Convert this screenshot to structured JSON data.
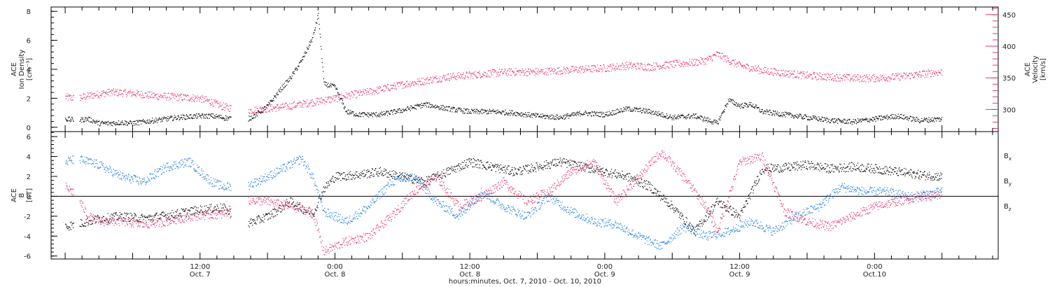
{
  "chart_data": [
    {
      "type": "scatter",
      "panel": "top",
      "y_title_lines": [
        "ACE",
        "Ion Density",
        "[cm⁻³]"
      ],
      "y2_title_lines": [
        "ACE",
        "Velocity",
        "[km/s]"
      ],
      "ylim": [
        -0.3,
        8.3
      ],
      "y2lim": [
        265,
        462
      ],
      "yticks": [
        0,
        2,
        4,
        6,
        8
      ],
      "y2ticks": [
        300,
        350,
        400,
        450
      ],
      "grid": false,
      "colors": {
        "density": "#000000",
        "velocity": "#e8336b"
      },
      "series": [
        {
          "axis": "left",
          "key": "density",
          "points": [
            [
              -12,
              0.6
            ],
            [
              -10,
              0.5
            ],
            [
              -8,
              0.6
            ],
            [
              -6,
              0.3
            ],
            [
              -4,
              0.3
            ],
            [
              -2,
              0.35
            ],
            [
              0,
              0.3
            ],
            [
              2,
              0.4
            ],
            [
              4,
              0.5
            ],
            [
              6,
              0.6
            ],
            [
              8,
              0.7
            ],
            [
              10,
              0.75
            ],
            [
              12,
              0.8
            ],
            [
              14,
              0.8
            ],
            [
              16,
              0.7
            ],
            [
              20,
              0.5
            ],
            [
              22,
              0.9
            ],
            [
              24,
              1.5
            ],
            [
              26,
              2.5
            ],
            [
              28,
              3.4
            ],
            [
              30,
              4.6
            ],
            [
              32,
              6.2
            ],
            [
              33,
              7.8
            ],
            [
              34,
              3.0
            ],
            [
              36,
              2.8
            ],
            [
              38,
              1.1
            ],
            [
              40,
              0.9
            ],
            [
              44,
              0.9
            ],
            [
              48,
              1.2
            ],
            [
              52,
              1.6
            ],
            [
              56,
              1.3
            ],
            [
              60,
              1.1
            ],
            [
              64,
              1.1
            ],
            [
              68,
              1.0
            ],
            [
              72,
              0.8
            ],
            [
              76,
              0.7
            ],
            [
              80,
              1.0
            ],
            [
              84,
              0.9
            ],
            [
              88,
              1.3
            ],
            [
              92,
              1.1
            ],
            [
              96,
              0.7
            ],
            [
              100,
              0.8
            ],
            [
              104,
              0.3
            ],
            [
              106,
              1.9
            ],
            [
              108,
              1.5
            ],
            [
              110,
              1.6
            ],
            [
              112,
              1.1
            ],
            [
              116,
              0.9
            ],
            [
              120,
              0.7
            ],
            [
              124,
              0.5
            ],
            [
              128,
              0.4
            ],
            [
              132,
              0.6
            ],
            [
              136,
              0.8
            ],
            [
              140,
              0.5
            ],
            [
              144,
              0.6
            ]
          ]
        },
        {
          "axis": "right",
          "key": "velocity",
          "points": [
            [
              -12,
              320
            ],
            [
              -10,
              318
            ],
            [
              -8,
              322
            ],
            [
              -4,
              328
            ],
            [
              0,
              326
            ],
            [
              4,
              322
            ],
            [
              8,
              320
            ],
            [
              12,
              318
            ],
            [
              14,
              312
            ],
            [
              16,
              305
            ],
            [
              20,
              298
            ],
            [
              24,
              302
            ],
            [
              28,
              306
            ],
            [
              32,
              312
            ],
            [
              36,
              318
            ],
            [
              38,
              322
            ],
            [
              40,
              325
            ],
            [
              44,
              332
            ],
            [
              48,
              340
            ],
            [
              52,
              346
            ],
            [
              56,
              352
            ],
            [
              60,
              355
            ],
            [
              64,
              358
            ],
            [
              68,
              360
            ],
            [
              72,
              360
            ],
            [
              76,
              362
            ],
            [
              80,
              364
            ],
            [
              84,
              366
            ],
            [
              88,
              370
            ],
            [
              92,
              368
            ],
            [
              96,
              372
            ],
            [
              100,
              375
            ],
            [
              102,
              378
            ],
            [
              104,
              388
            ],
            [
              106,
              378
            ],
            [
              108,
              370
            ],
            [
              112,
              362
            ],
            [
              116,
              358
            ],
            [
              120,
              354
            ],
            [
              124,
              352
            ],
            [
              128,
              350
            ],
            [
              132,
              350
            ],
            [
              136,
              352
            ],
            [
              140,
              356
            ],
            [
              144,
              360
            ]
          ]
        }
      ]
    },
    {
      "type": "scatter",
      "panel": "bottom",
      "y_title_lines": [
        "ACE",
        "B",
        "[nT]"
      ],
      "ylim": [
        -6.3,
        6.5
      ],
      "yticks": [
        -6,
        -4,
        -2,
        0,
        2,
        4,
        6
      ],
      "zero_line": true,
      "grid": false,
      "series": [
        {
          "name": "B",
          "sub": "x",
          "color": "#000000",
          "points": [
            [
              -12,
              -3.0
            ],
            [
              -10,
              -2.8
            ],
            [
              -6,
              -2.2
            ],
            [
              -2,
              -2.0
            ],
            [
              2,
              -2.2
            ],
            [
              6,
              -1.9
            ],
            [
              10,
              -1.5
            ],
            [
              14,
              -1.2
            ],
            [
              16,
              -1.1
            ],
            [
              20,
              -2.8
            ],
            [
              24,
              -2.0
            ],
            [
              28,
              -0.5
            ],
            [
              32,
              -1.8
            ],
            [
              34,
              0.8
            ],
            [
              36,
              2.0
            ],
            [
              40,
              2.2
            ],
            [
              44,
              2.5
            ],
            [
              48,
              2.0
            ],
            [
              52,
              1.5
            ],
            [
              56,
              2.5
            ],
            [
              60,
              3.5
            ],
            [
              64,
              3.0
            ],
            [
              68,
              2.5
            ],
            [
              72,
              3.0
            ],
            [
              76,
              3.5
            ],
            [
              80,
              3.0
            ],
            [
              84,
              2.5
            ],
            [
              88,
              2.0
            ],
            [
              92,
              1.0
            ],
            [
              96,
              -1.0
            ],
            [
              100,
              -3.5
            ],
            [
              104,
              -0.5
            ],
            [
              108,
              -2.0
            ],
            [
              112,
              2.8
            ],
            [
              116,
              2.9
            ],
            [
              120,
              3.2
            ],
            [
              124,
              2.8
            ],
            [
              128,
              3.0
            ],
            [
              132,
              2.8
            ],
            [
              136,
              2.5
            ],
            [
              140,
              2.2
            ],
            [
              144,
              2.0
            ]
          ]
        },
        {
          "name": "B",
          "sub": "y",
          "color": "#1f7fdf",
          "points": [
            [
              -12,
              3.5
            ],
            [
              -10,
              3.8
            ],
            [
              -6,
              3.2
            ],
            [
              -2,
              2.0
            ],
            [
              2,
              1.5
            ],
            [
              6,
              3.0
            ],
            [
              10,
              3.5
            ],
            [
              12,
              2.5
            ],
            [
              14,
              1.5
            ],
            [
              16,
              1.0
            ],
            [
              20,
              1.0
            ],
            [
              24,
              2.0
            ],
            [
              28,
              3.2
            ],
            [
              30,
              3.8
            ],
            [
              32,
              2.0
            ],
            [
              34,
              -1.5
            ],
            [
              38,
              -2.5
            ],
            [
              42,
              -1.0
            ],
            [
              46,
              1.5
            ],
            [
              50,
              2.0
            ],
            [
              54,
              -0.5
            ],
            [
              58,
              -2.0
            ],
            [
              62,
              0.5
            ],
            [
              66,
              -1.0
            ],
            [
              70,
              -2.0
            ],
            [
              74,
              0.0
            ],
            [
              78,
              -1.5
            ],
            [
              82,
              -2.5
            ],
            [
              86,
              -2.8
            ],
            [
              90,
              -4.0
            ],
            [
              94,
              -5.0
            ],
            [
              98,
              -3.0
            ],
            [
              102,
              -4.0
            ],
            [
              106,
              -3.5
            ],
            [
              110,
              -2.5
            ],
            [
              114,
              -3.5
            ],
            [
              118,
              -2.0
            ],
            [
              122,
              -1.0
            ],
            [
              126,
              1.0
            ],
            [
              130,
              0.5
            ],
            [
              134,
              0.5
            ],
            [
              138,
              0.0
            ],
            [
              142,
              0.3
            ],
            [
              144,
              0.5
            ]
          ]
        },
        {
          "name": "B",
          "sub": "z",
          "color": "#e8336b",
          "points": [
            [
              -12,
              1.0
            ],
            [
              -10,
              0.2
            ],
            [
              -8,
              -2.0
            ],
            [
              -6,
              -2.5
            ],
            [
              -2,
              -2.5
            ],
            [
              2,
              -2.8
            ],
            [
              6,
              -2.5
            ],
            [
              10,
              -2.0
            ],
            [
              14,
              -1.8
            ],
            [
              16,
              -1.8
            ],
            [
              20,
              -0.3
            ],
            [
              24,
              -0.5
            ],
            [
              28,
              -1.0
            ],
            [
              32,
              -1.5
            ],
            [
              34,
              -5.5
            ],
            [
              38,
              -4.5
            ],
            [
              42,
              -4.0
            ],
            [
              46,
              -2.0
            ],
            [
              50,
              0.5
            ],
            [
              54,
              2.0
            ],
            [
              58,
              -1.0
            ],
            [
              62,
              0.0
            ],
            [
              66,
              1.5
            ],
            [
              70,
              -0.5
            ],
            [
              74,
              0.5
            ],
            [
              78,
              2.5
            ],
            [
              82,
              3.5
            ],
            [
              86,
              -0.5
            ],
            [
              90,
              2.0
            ],
            [
              94,
              4.5
            ],
            [
              98,
              2.0
            ],
            [
              102,
              -1.0
            ],
            [
              104,
              -3.5
            ],
            [
              108,
              3.5
            ],
            [
              112,
              4.0
            ],
            [
              116,
              -1.5
            ],
            [
              120,
              -2.5
            ],
            [
              124,
              -3.0
            ],
            [
              128,
              -2.0
            ],
            [
              132,
              -1.0
            ],
            [
              136,
              -0.5
            ],
            [
              140,
              0.0
            ],
            [
              144,
              0.2
            ]
          ]
        }
      ]
    }
  ],
  "x_axis": {
    "title": "hours:minutes, Oct.  7, 2010 - Oct. 10, 2010",
    "xlim": [
      -14.5,
      154
    ],
    "ticks": [
      {
        "hours": 12,
        "time": "12:00",
        "date": "Oct. 7"
      },
      {
        "hours": 36,
        "time": "0:00",
        "date": "Oct. 8"
      },
      {
        "hours": 60,
        "time": "12:00",
        "date": "Oct. 8"
      },
      {
        "hours": 84,
        "time": "0:00",
        "date": "Oct. 9"
      },
      {
        "hours": 108,
        "time": "12:00",
        "date": "Oct. 9"
      },
      {
        "hours": 132,
        "time": "0:00",
        "date": "Oct.10"
      }
    ]
  },
  "gaps_hours": [
    [
      -10.5,
      -9.5
    ],
    [
      17.5,
      20.5
    ]
  ]
}
